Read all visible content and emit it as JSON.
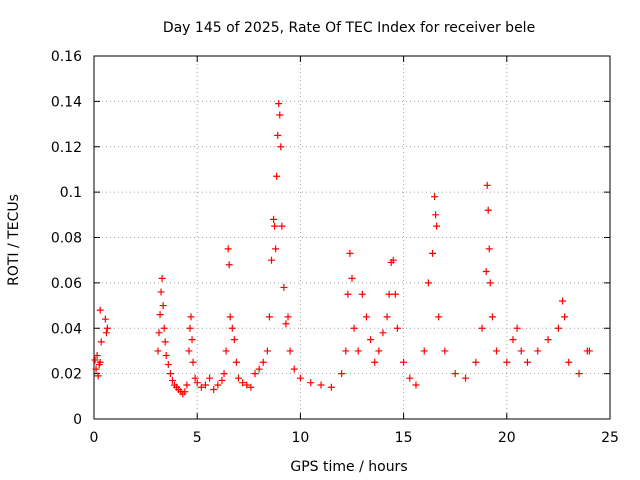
{
  "chart_data": {
    "type": "scatter",
    "title": "Day 145 of 2025, Rate Of TEC Index for receiver bele",
    "xlabel": "GPS time / hours",
    "ylabel": "ROTI / TECUs",
    "xlim": [
      0,
      25
    ],
    "ylim": [
      0,
      0.16
    ],
    "xticks": [
      0,
      5,
      10,
      15,
      20,
      25
    ],
    "xtick_labels": [
      "0",
      "5",
      "10",
      "15",
      "20",
      "25"
    ],
    "yticks": [
      0,
      0.02,
      0.04,
      0.06,
      0.08,
      0.1,
      0.12,
      0.14,
      0.16
    ],
    "ytick_labels": [
      "0",
      "0.02",
      "0.04",
      "0.06",
      "0.08",
      "0.1",
      "0.12",
      "0.14",
      "0.16"
    ],
    "grid": true,
    "marker": "+",
    "color": "#ff0000",
    "series": [
      {
        "name": "ROTI",
        "points": [
          [
            0.05,
            0.026
          ],
          [
            0.1,
            0.022
          ],
          [
            0.15,
            0.028
          ],
          [
            0.2,
            0.019
          ],
          [
            0.25,
            0.024
          ],
          [
            0.3,
            0.025
          ],
          [
            0.35,
            0.034
          ],
          [
            0.3,
            0.048
          ],
          [
            0.55,
            0.044
          ],
          [
            0.6,
            0.038
          ],
          [
            0.65,
            0.04
          ],
          [
            3.1,
            0.03
          ],
          [
            3.15,
            0.038
          ],
          [
            3.2,
            0.046
          ],
          [
            3.25,
            0.056
          ],
          [
            3.3,
            0.062
          ],
          [
            3.35,
            0.05
          ],
          [
            3.4,
            0.04
          ],
          [
            3.45,
            0.034
          ],
          [
            3.5,
            0.028
          ],
          [
            3.6,
            0.024
          ],
          [
            3.7,
            0.02
          ],
          [
            3.8,
            0.017
          ],
          [
            3.9,
            0.015
          ],
          [
            4.0,
            0.014
          ],
          [
            4.1,
            0.013
          ],
          [
            4.2,
            0.012
          ],
          [
            4.3,
            0.011
          ],
          [
            4.4,
            0.012
          ],
          [
            4.5,
            0.015
          ],
          [
            4.6,
            0.03
          ],
          [
            4.65,
            0.04
          ],
          [
            4.7,
            0.045
          ],
          [
            4.75,
            0.035
          ],
          [
            4.8,
            0.025
          ],
          [
            4.9,
            0.018
          ],
          [
            5.0,
            0.016
          ],
          [
            5.2,
            0.014
          ],
          [
            5.4,
            0.015
          ],
          [
            5.6,
            0.018
          ],
          [
            5.8,
            0.013
          ],
          [
            6.0,
            0.015
          ],
          [
            6.2,
            0.017
          ],
          [
            6.3,
            0.02
          ],
          [
            6.4,
            0.03
          ],
          [
            6.5,
            0.075
          ],
          [
            6.55,
            0.068
          ],
          [
            6.6,
            0.045
          ],
          [
            6.7,
            0.04
          ],
          [
            6.8,
            0.035
          ],
          [
            6.9,
            0.025
          ],
          [
            7.0,
            0.018
          ],
          [
            7.2,
            0.016
          ],
          [
            7.4,
            0.015
          ],
          [
            7.6,
            0.014
          ],
          [
            7.8,
            0.02
          ],
          [
            8.0,
            0.022
          ],
          [
            8.2,
            0.025
          ],
          [
            8.4,
            0.03
          ],
          [
            8.5,
            0.045
          ],
          [
            8.6,
            0.07
          ],
          [
            8.7,
            0.088
          ],
          [
            8.75,
            0.085
          ],
          [
            8.8,
            0.075
          ],
          [
            8.85,
            0.107
          ],
          [
            8.9,
            0.125
          ],
          [
            8.95,
            0.139
          ],
          [
            9.0,
            0.134
          ],
          [
            9.05,
            0.12
          ],
          [
            9.1,
            0.085
          ],
          [
            9.2,
            0.058
          ],
          [
            9.3,
            0.042
          ],
          [
            9.4,
            0.045
          ],
          [
            9.5,
            0.03
          ],
          [
            9.7,
            0.022
          ],
          [
            10.0,
            0.018
          ],
          [
            10.5,
            0.016
          ],
          [
            11.0,
            0.015
          ],
          [
            11.5,
            0.014
          ],
          [
            12.0,
            0.02
          ],
          [
            12.2,
            0.03
          ],
          [
            12.3,
            0.055
          ],
          [
            12.4,
            0.073
          ],
          [
            12.5,
            0.062
          ],
          [
            12.6,
            0.04
          ],
          [
            12.8,
            0.03
          ],
          [
            13.0,
            0.055
          ],
          [
            13.2,
            0.045
          ],
          [
            13.4,
            0.035
          ],
          [
            13.6,
            0.025
          ],
          [
            13.8,
            0.03
          ],
          [
            14.0,
            0.038
          ],
          [
            14.2,
            0.045
          ],
          [
            14.3,
            0.055
          ],
          [
            14.4,
            0.069
          ],
          [
            14.5,
            0.07
          ],
          [
            14.6,
            0.055
          ],
          [
            14.7,
            0.04
          ],
          [
            15.0,
            0.025
          ],
          [
            15.3,
            0.018
          ],
          [
            15.6,
            0.015
          ],
          [
            16.0,
            0.03
          ],
          [
            16.2,
            0.06
          ],
          [
            16.4,
            0.073
          ],
          [
            16.5,
            0.098
          ],
          [
            16.55,
            0.09
          ],
          [
            16.6,
            0.085
          ],
          [
            16.7,
            0.045
          ],
          [
            17.0,
            0.03
          ],
          [
            17.5,
            0.02
          ],
          [
            18.0,
            0.018
          ],
          [
            18.5,
            0.025
          ],
          [
            18.8,
            0.04
          ],
          [
            19.0,
            0.065
          ],
          [
            19.05,
            0.103
          ],
          [
            19.1,
            0.092
          ],
          [
            19.15,
            0.075
          ],
          [
            19.2,
            0.06
          ],
          [
            19.3,
            0.045
          ],
          [
            19.5,
            0.03
          ],
          [
            20.0,
            0.025
          ],
          [
            20.3,
            0.035
          ],
          [
            20.5,
            0.04
          ],
          [
            20.7,
            0.03
          ],
          [
            21.0,
            0.025
          ],
          [
            21.5,
            0.03
          ],
          [
            22.0,
            0.035
          ],
          [
            22.5,
            0.04
          ],
          [
            22.7,
            0.052
          ],
          [
            22.8,
            0.045
          ],
          [
            23.0,
            0.025
          ],
          [
            23.5,
            0.02
          ],
          [
            23.9,
            0.03
          ],
          [
            24.0,
            0.03
          ]
        ]
      }
    ]
  }
}
